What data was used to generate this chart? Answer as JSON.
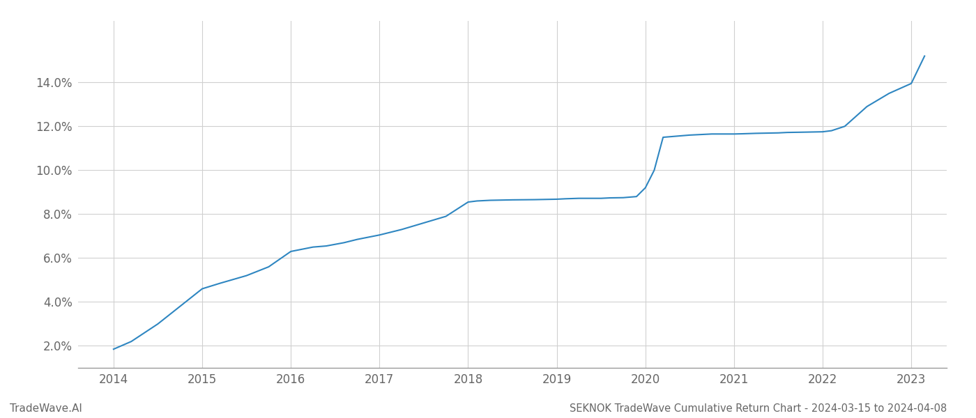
{
  "x_values": [
    2014.0,
    2014.2,
    2014.5,
    2014.75,
    2015.0,
    2015.2,
    2015.5,
    2015.75,
    2016.0,
    2016.25,
    2016.4,
    2016.6,
    2016.75,
    2017.0,
    2017.25,
    2017.5,
    2017.75,
    2018.0,
    2018.1,
    2018.25,
    2018.5,
    2018.75,
    2019.0,
    2019.1,
    2019.25,
    2019.5,
    2019.6,
    2019.75,
    2019.9,
    2020.0,
    2020.1,
    2020.2,
    2020.5,
    2020.75,
    2021.0,
    2021.1,
    2021.25,
    2021.5,
    2021.6,
    2021.75,
    2022.0,
    2022.1,
    2022.25,
    2022.5,
    2022.75,
    2023.0,
    2023.15
  ],
  "y_values": [
    1.85,
    2.2,
    3.0,
    3.8,
    4.6,
    4.85,
    5.2,
    5.6,
    6.3,
    6.5,
    6.55,
    6.7,
    6.85,
    7.05,
    7.3,
    7.6,
    7.9,
    8.55,
    8.6,
    8.63,
    8.65,
    8.66,
    8.68,
    8.7,
    8.72,
    8.72,
    8.74,
    8.75,
    8.8,
    9.2,
    10.0,
    11.5,
    11.6,
    11.65,
    11.65,
    11.66,
    11.68,
    11.7,
    11.72,
    11.73,
    11.75,
    11.8,
    12.0,
    12.9,
    13.5,
    13.95,
    15.2
  ],
  "line_color": "#2e86c1",
  "line_width": 1.5,
  "title": "SEKNOK TradeWave Cumulative Return Chart - 2024-03-15 to 2024-04-08",
  "watermark": "TradeWave.AI",
  "background_color": "#ffffff",
  "grid_color": "#d0d0d0",
  "xlim": [
    2013.6,
    2023.4
  ],
  "ylim": [
    1.0,
    16.8
  ],
  "ytick_labels": [
    "2.0%",
    "4.0%",
    "6.0%",
    "8.0%",
    "10.0%",
    "12.0%",
    "14.0%"
  ],
  "ytick_values": [
    2.0,
    4.0,
    6.0,
    8.0,
    10.0,
    12.0,
    14.0
  ],
  "xtick_labels": [
    "2014",
    "2015",
    "2016",
    "2017",
    "2018",
    "2019",
    "2020",
    "2021",
    "2022",
    "2023"
  ],
  "xtick_values": [
    2014,
    2015,
    2016,
    2017,
    2018,
    2019,
    2020,
    2021,
    2022,
    2023
  ],
  "title_fontsize": 10.5,
  "watermark_fontsize": 11,
  "tick_fontsize": 12,
  "tick_color": "#666666",
  "spine_color": "#999999"
}
